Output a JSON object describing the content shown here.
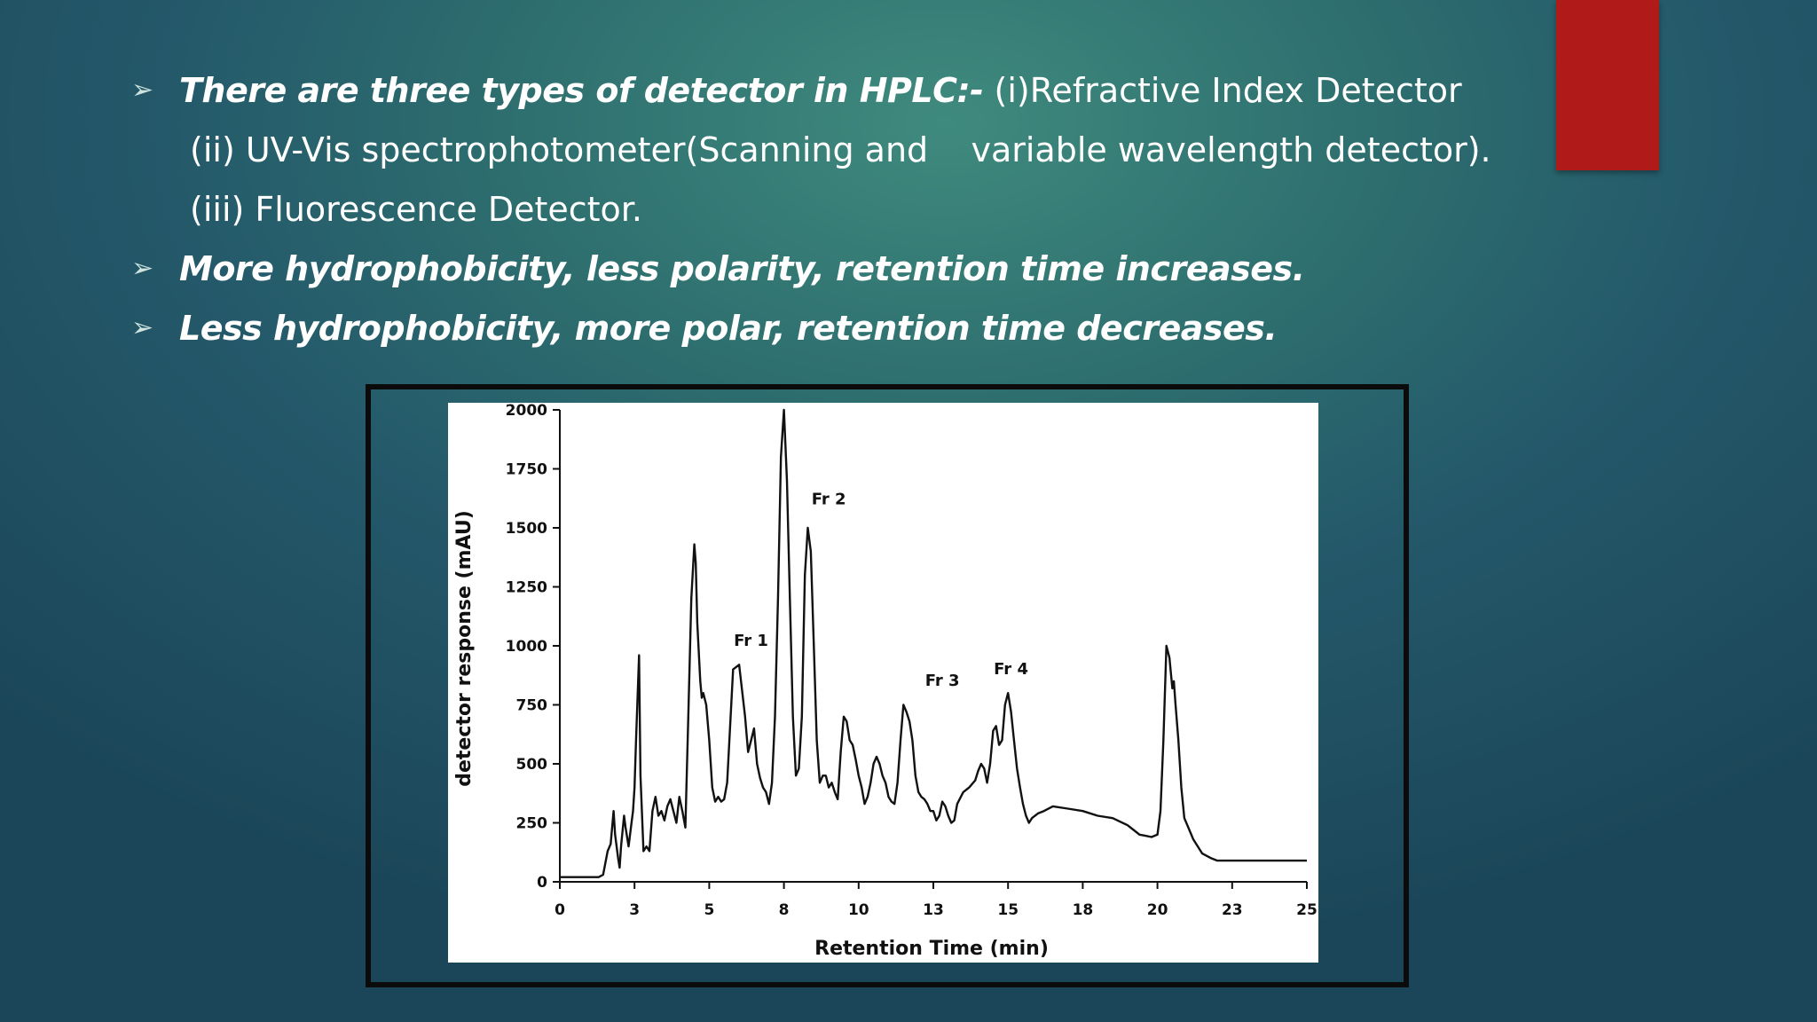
{
  "slide": {
    "bullets": [
      {
        "bold": "There are three types of detector in HPLC:-",
        "plain": " (i)Refractive Index Detector"
      },
      {
        "plain": "(ii) UV-Vis spectrophotometer(Scanning and    variable wavelength detector)."
      },
      {
        "plain": "(iii) Fluorescence Detector."
      },
      {
        "bold": "More hydrophobicity, less polarity, retention time increases."
      },
      {
        "bold": "Less hydrophobicity, more polar, retention time decreases."
      }
    ],
    "bullet_icon": "arrow-bullet-icon",
    "accent_color": "#b01a18"
  },
  "chart_data": {
    "type": "line",
    "title": "",
    "xlabel": "Retention Time (min)",
    "ylabel": "detector response (mAU)",
    "xlim": [
      0,
      25
    ],
    "ylim": [
      0,
      2000
    ],
    "x_tick_labels": [
      "0",
      "3",
      "5",
      "8",
      "10",
      "13",
      "15",
      "18",
      "20",
      "23",
      "25"
    ],
    "y_tick_labels": [
      "0",
      "250",
      "500",
      "750",
      "1000",
      "1250",
      "1500",
      "1750",
      "2000"
    ],
    "grid": false,
    "line_color": "#111111",
    "annotations": [
      {
        "text": "Fr 1",
        "x": 6.4,
        "y": 1000
      },
      {
        "text": "Fr 2",
        "x": 9.0,
        "y": 1600
      },
      {
        "text": "Fr 3",
        "x": 12.8,
        "y": 830
      },
      {
        "text": "Fr 4",
        "x": 15.1,
        "y": 880
      }
    ],
    "series": [
      {
        "x": [
          0,
          1.0,
          1.3,
          1.45,
          1.6,
          1.7,
          1.8,
          1.85,
          1.95,
          2.0,
          2.05,
          2.15,
          2.2,
          2.3,
          2.4,
          2.45,
          2.5,
          2.55,
          2.65,
          2.7,
          2.8,
          2.9,
          3.0,
          3.1,
          3.2,
          3.3,
          3.4,
          3.5,
          3.6,
          3.7,
          3.8,
          3.9,
          4.0,
          4.1,
          4.2,
          4.3,
          4.4,
          4.5,
          4.55,
          4.6,
          4.7,
          4.75,
          4.8,
          4.9,
          5.0,
          5.1,
          5.2,
          5.3,
          5.4,
          5.5,
          5.6,
          5.8,
          6.0,
          6.2,
          6.3,
          6.4,
          6.5,
          6.6,
          6.7,
          6.8,
          6.9,
          7.0,
          7.1,
          7.2,
          7.3,
          7.4,
          7.5,
          7.6,
          7.7,
          7.8,
          7.9,
          8.0,
          8.1,
          8.2,
          8.3,
          8.4,
          8.5,
          8.6,
          8.7,
          8.8,
          8.9,
          9.0,
          9.1,
          9.2,
          9.3,
          9.4,
          9.5,
          9.6,
          9.7,
          9.8,
          9.9,
          10.0,
          10.1,
          10.2,
          10.3,
          10.4,
          10.5,
          10.6,
          10.7,
          10.8,
          10.9,
          11.0,
          11.1,
          11.2,
          11.3,
          11.4,
          11.5,
          11.6,
          11.7,
          11.8,
          11.9,
          12.0,
          12.1,
          12.2,
          12.3,
          12.4,
          12.5,
          12.6,
          12.7,
          12.8,
          12.9,
          13.0,
          13.1,
          13.2,
          13.3,
          13.5,
          13.7,
          13.9,
          14.0,
          14.1,
          14.2,
          14.3,
          14.4,
          14.5,
          14.6,
          14.7,
          14.8,
          14.9,
          15.0,
          15.1,
          15.2,
          15.3,
          15.4,
          15.5,
          15.6,
          15.7,
          15.8,
          16.0,
          16.2,
          16.5,
          17.0,
          17.5,
          18.0,
          18.5,
          19.0,
          19.2,
          19.4,
          19.6,
          19.8,
          20.0,
          20.1,
          20.2,
          20.3,
          20.4,
          20.5,
          20.55,
          20.6,
          20.7,
          20.8,
          20.9,
          21.0,
          21.2,
          21.5,
          21.8,
          22.0,
          22.5,
          23.0,
          24.0,
          25.0
        ],
        "y": [
          20,
          20,
          20,
          30,
          130,
          160,
          300,
          200,
          100,
          60,
          150,
          280,
          230,
          150,
          250,
          300,
          400,
          600,
          960,
          450,
          130,
          150,
          130,
          300,
          360,
          280,
          300,
          260,
          320,
          350,
          300,
          250,
          360,
          300,
          230,
          700,
          1200,
          1430,
          1350,
          1100,
          850,
          780,
          800,
          750,
          600,
          400,
          340,
          360,
          340,
          350,
          420,
          900,
          920,
          700,
          550,
          600,
          650,
          500,
          440,
          400,
          380,
          330,
          420,
          700,
          1200,
          1800,
          2000,
          1700,
          1200,
          700,
          450,
          480,
          700,
          1300,
          1500,
          1400,
          1000,
          600,
          420,
          450,
          450,
          400,
          420,
          380,
          350,
          550,
          700,
          680,
          600,
          580,
          520,
          450,
          400,
          330,
          360,
          420,
          500,
          530,
          500,
          450,
          420,
          360,
          340,
          330,
          420,
          600,
          750,
          720,
          680,
          600,
          450,
          380,
          360,
          350,
          330,
          300,
          300,
          260,
          280,
          340,
          320,
          280,
          250,
          260,
          330,
          380,
          400,
          430,
          470,
          500,
          480,
          420,
          500,
          640,
          660,
          580,
          600,
          750,
          800,
          720,
          600,
          480,
          400,
          330,
          280,
          250,
          270,
          290,
          300,
          320,
          310,
          300,
          280,
          270,
          240,
          220,
          200,
          195,
          190,
          200,
          300,
          600,
          1000,
          950,
          820,
          850,
          760,
          600,
          400,
          270,
          240,
          180,
          120,
          100,
          90,
          90,
          90,
          90,
          90
        ]
      }
    ]
  }
}
